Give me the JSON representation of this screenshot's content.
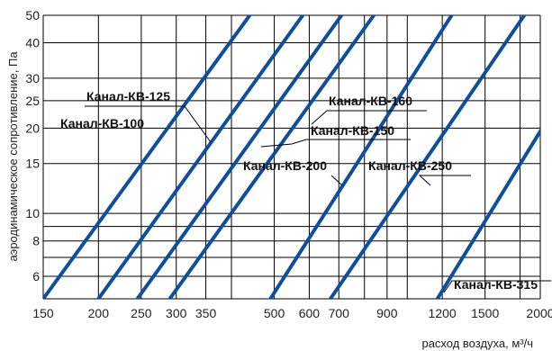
{
  "chart_data": {
    "type": "line",
    "title": "",
    "xlabel": "расход воздуха, м³/ч",
    "ylabel": "аэродинамическое сопротивление, Па",
    "x_scale": "log",
    "y_scale": "log",
    "xlim": [
      150,
      2000
    ],
    "ylim": [
      5,
      50
    ],
    "grid": true,
    "line_color": "#0d4f9e",
    "x_ticks": [
      150,
      200,
      250,
      300,
      350,
      500,
      600,
      700,
      900,
      1200,
      1500,
      2000
    ],
    "x_tick_labels": [
      "150",
      "200",
      "250",
      "300",
      "350",
      "500",
      "600",
      "700",
      "900",
      "1200",
      "1500",
      "2000"
    ],
    "x_gridlines": [
      150,
      200,
      250,
      300,
      350,
      400,
      500,
      600,
      700,
      800,
      900,
      1000,
      1200,
      1500,
      1800,
      2000
    ],
    "y_ticks": [
      6,
      8,
      10,
      15,
      20,
      25,
      30,
      40,
      50
    ],
    "y_tick_labels": [
      "6",
      "8",
      "10",
      "15",
      "20",
      "25",
      "30",
      "40",
      "50"
    ],
    "y_gridlines": [
      5,
      6,
      7,
      8,
      9,
      10,
      15,
      20,
      25,
      30,
      40,
      50
    ],
    "series": [
      {
        "name": "Канал-КВ-100",
        "points": [
          [
            150,
            5.0
          ],
          [
            440,
            50
          ]
        ]
      },
      {
        "name": "Канал-КВ-125",
        "points": [
          [
            200,
            5.0
          ],
          [
            580,
            50
          ]
        ]
      },
      {
        "name": "Канал-КВ-150",
        "points": [
          [
            245,
            5.0
          ],
          [
            710,
            50
          ]
        ]
      },
      {
        "name": "Канал-КВ-160",
        "points": [
          [
            290,
            5.0
          ],
          [
            840,
            50
          ]
        ]
      },
      {
        "name": "Канал-КВ-200",
        "points": [
          [
            490,
            5.0
          ],
          [
            1260,
            50
          ]
        ]
      },
      {
        "name": "Канал-КВ-250",
        "points": [
          [
            670,
            5.0
          ],
          [
            1840,
            50
          ]
        ]
      },
      {
        "name": "Канал-КВ-315",
        "points": [
          [
            1170,
            5.0
          ],
          [
            2000,
            19.5
          ]
        ]
      }
    ],
    "annotations": [
      {
        "text": "Канал-КВ-125",
        "series": "Канал-КВ-125"
      },
      {
        "text": "Канал-КВ-100",
        "series": "Канал-КВ-100"
      },
      {
        "text": "Канал-КВ-160",
        "series": "Канал-КВ-160"
      },
      {
        "text": "Канал-КВ-150",
        "series": "Канал-КВ-150"
      },
      {
        "text": "Канал-КВ-200",
        "series": "Канал-КВ-200"
      },
      {
        "text": "Канал-КВ-250",
        "series": "Канал-КВ-250"
      },
      {
        "text": "Канал-КВ-315",
        "series": "Канал-КВ-315"
      }
    ]
  }
}
